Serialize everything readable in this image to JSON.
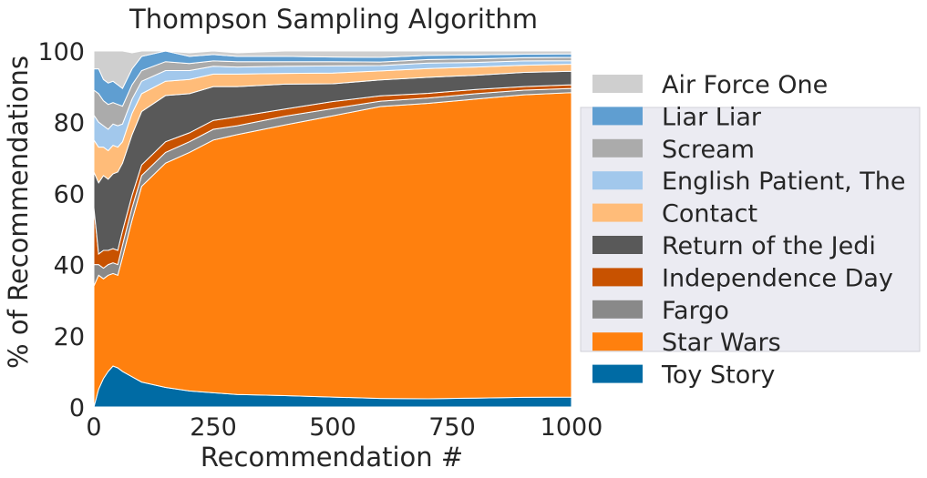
{
  "chart_data": {
    "type": "area",
    "stacked": true,
    "title": "Thompson Sampling Algorithm",
    "xlabel": "Recommendation #",
    "ylabel": "% of Recommendations",
    "xlim": [
      0,
      1000
    ],
    "ylim": [
      0,
      100
    ],
    "xticks": [
      "0",
      "250",
      "500",
      "750",
      "1000"
    ],
    "yticks": [
      "0",
      "20",
      "40",
      "60",
      "80",
      "100"
    ],
    "grid": false,
    "legend_position": "right",
    "x": [
      0,
      10,
      20,
      30,
      40,
      50,
      60,
      80,
      100,
      150,
      200,
      250,
      300,
      400,
      500,
      600,
      700,
      800,
      900,
      1000
    ],
    "series": [
      {
        "name": "Toy Story",
        "color": "#006BA4",
        "values": [
          0,
          5,
          8,
          10,
          11.5,
          11,
          10,
          8.5,
          7,
          5.5,
          4.5,
          4,
          3.5,
          3.2,
          2.8,
          2.4,
          2.3,
          2.5,
          2.7,
          2.8
        ]
      },
      {
        "name": "Star Wars",
        "color": "#FF800E",
        "values": [
          34,
          32,
          28,
          27,
          26,
          26,
          32,
          44,
          55,
          63,
          67,
          71,
          73,
          76,
          79,
          82,
          83,
          84,
          85,
          85.5
        ]
      },
      {
        "name": "Fargo",
        "color": "#898989",
        "values": [
          6,
          3,
          3,
          3,
          3,
          3,
          3.5,
          3.5,
          3,
          3,
          3,
          3,
          2.5,
          2.5,
          2,
          1.5,
          1.5,
          1.5,
          1.3,
          1.2
        ]
      },
      {
        "name": "Independence Day",
        "color": "#C85200",
        "values": [
          16,
          3,
          5,
          4,
          4,
          4,
          4,
          3.5,
          3,
          3,
          2.5,
          2.5,
          2.5,
          2,
          2,
          1.5,
          1.3,
          1.2,
          1,
          1
        ]
      },
      {
        "name": "Return of the Jedi",
        "color": "#595959",
        "values": [
          10,
          20,
          21,
          20,
          21,
          22,
          19,
          17,
          15,
          13,
          11,
          9.5,
          8.5,
          7,
          5,
          4.5,
          4.5,
          4,
          4,
          3.8
        ]
      },
      {
        "name": "Contact",
        "color": "#FFBC79",
        "values": [
          9,
          10,
          8,
          8,
          8,
          7,
          6,
          6,
          5,
          4,
          4,
          3.5,
          3.5,
          3,
          3,
          2.5,
          2.5,
          2.3,
          2,
          2
        ]
      },
      {
        "name": "English Patient, The",
        "color": "#A2C8EC",
        "values": [
          7,
          7,
          6,
          6,
          6,
          6,
          5,
          4,
          3.5,
          3,
          2.5,
          2.2,
          2,
          2,
          2,
          1.5,
          1.5,
          1.3,
          1.2,
          1
        ]
      },
      {
        "name": "Scream",
        "color": "#ABABAB",
        "values": [
          7,
          8,
          7,
          7,
          6,
          6,
          5,
          4,
          3,
          2.5,
          2,
          1.5,
          1.5,
          1.3,
          1.2,
          1,
          1,
          1,
          0.9,
          0.9
        ]
      },
      {
        "name": "Liar Liar",
        "color": "#5F9ED1",
        "values": [
          6,
          7,
          6,
          6,
          6,
          5.5,
          5,
          4.5,
          4,
          3,
          2,
          1.8,
          1.5,
          1.5,
          1.3,
          1.3,
          1.2,
          1.1,
          1,
          1
        ]
      },
      {
        "name": "Air Force One",
        "color": "#CFCFCF",
        "values": [
          5,
          5,
          8,
          9,
          8.5,
          9.5,
          10.5,
          4.5,
          1.5,
          0,
          1,
          1,
          1,
          1.5,
          1.7,
          1.8,
          1.2,
          1.1,
          0.9,
          0.8
        ]
      }
    ]
  }
}
